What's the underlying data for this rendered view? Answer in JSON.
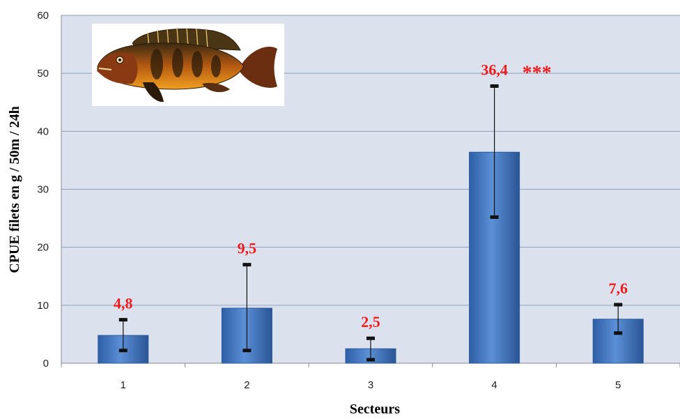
{
  "chart_data": {
    "type": "bar",
    "categories": [
      "1",
      "2",
      "3",
      "4",
      "5"
    ],
    "values": [
      4.8,
      9.5,
      2.5,
      36.4,
      7.6
    ],
    "data_labels": [
      "4,8",
      "9,5",
      "2,5",
      "36,4",
      "7,6"
    ],
    "error_bars": [
      {
        "low": 2.2,
        "high": 7.5
      },
      {
        "low": 2.2,
        "high": 17.0
      },
      {
        "low": 0.6,
        "high": 4.3
      },
      {
        "low": 25.2,
        "high": 47.8
      },
      {
        "low": 5.2,
        "high": 10.1
      }
    ],
    "significance": {
      "category": "4",
      "text": "***"
    },
    "xlabel": "Secteurs",
    "ylabel": "CPUE filets en g / 50m / 24h",
    "ylim": [
      0,
      60
    ],
    "yticks": [
      0,
      10,
      20,
      30,
      40,
      50,
      60
    ],
    "grid": true,
    "colors": {
      "plot_background": "#dbe2ee",
      "bar": "#4a7dc8",
      "bar_dark": "#2d5a9e",
      "gridline": "#8f9fb8",
      "label": "#ee1c1c"
    },
    "image": {
      "icon": "grouper-fish-icon"
    }
  }
}
